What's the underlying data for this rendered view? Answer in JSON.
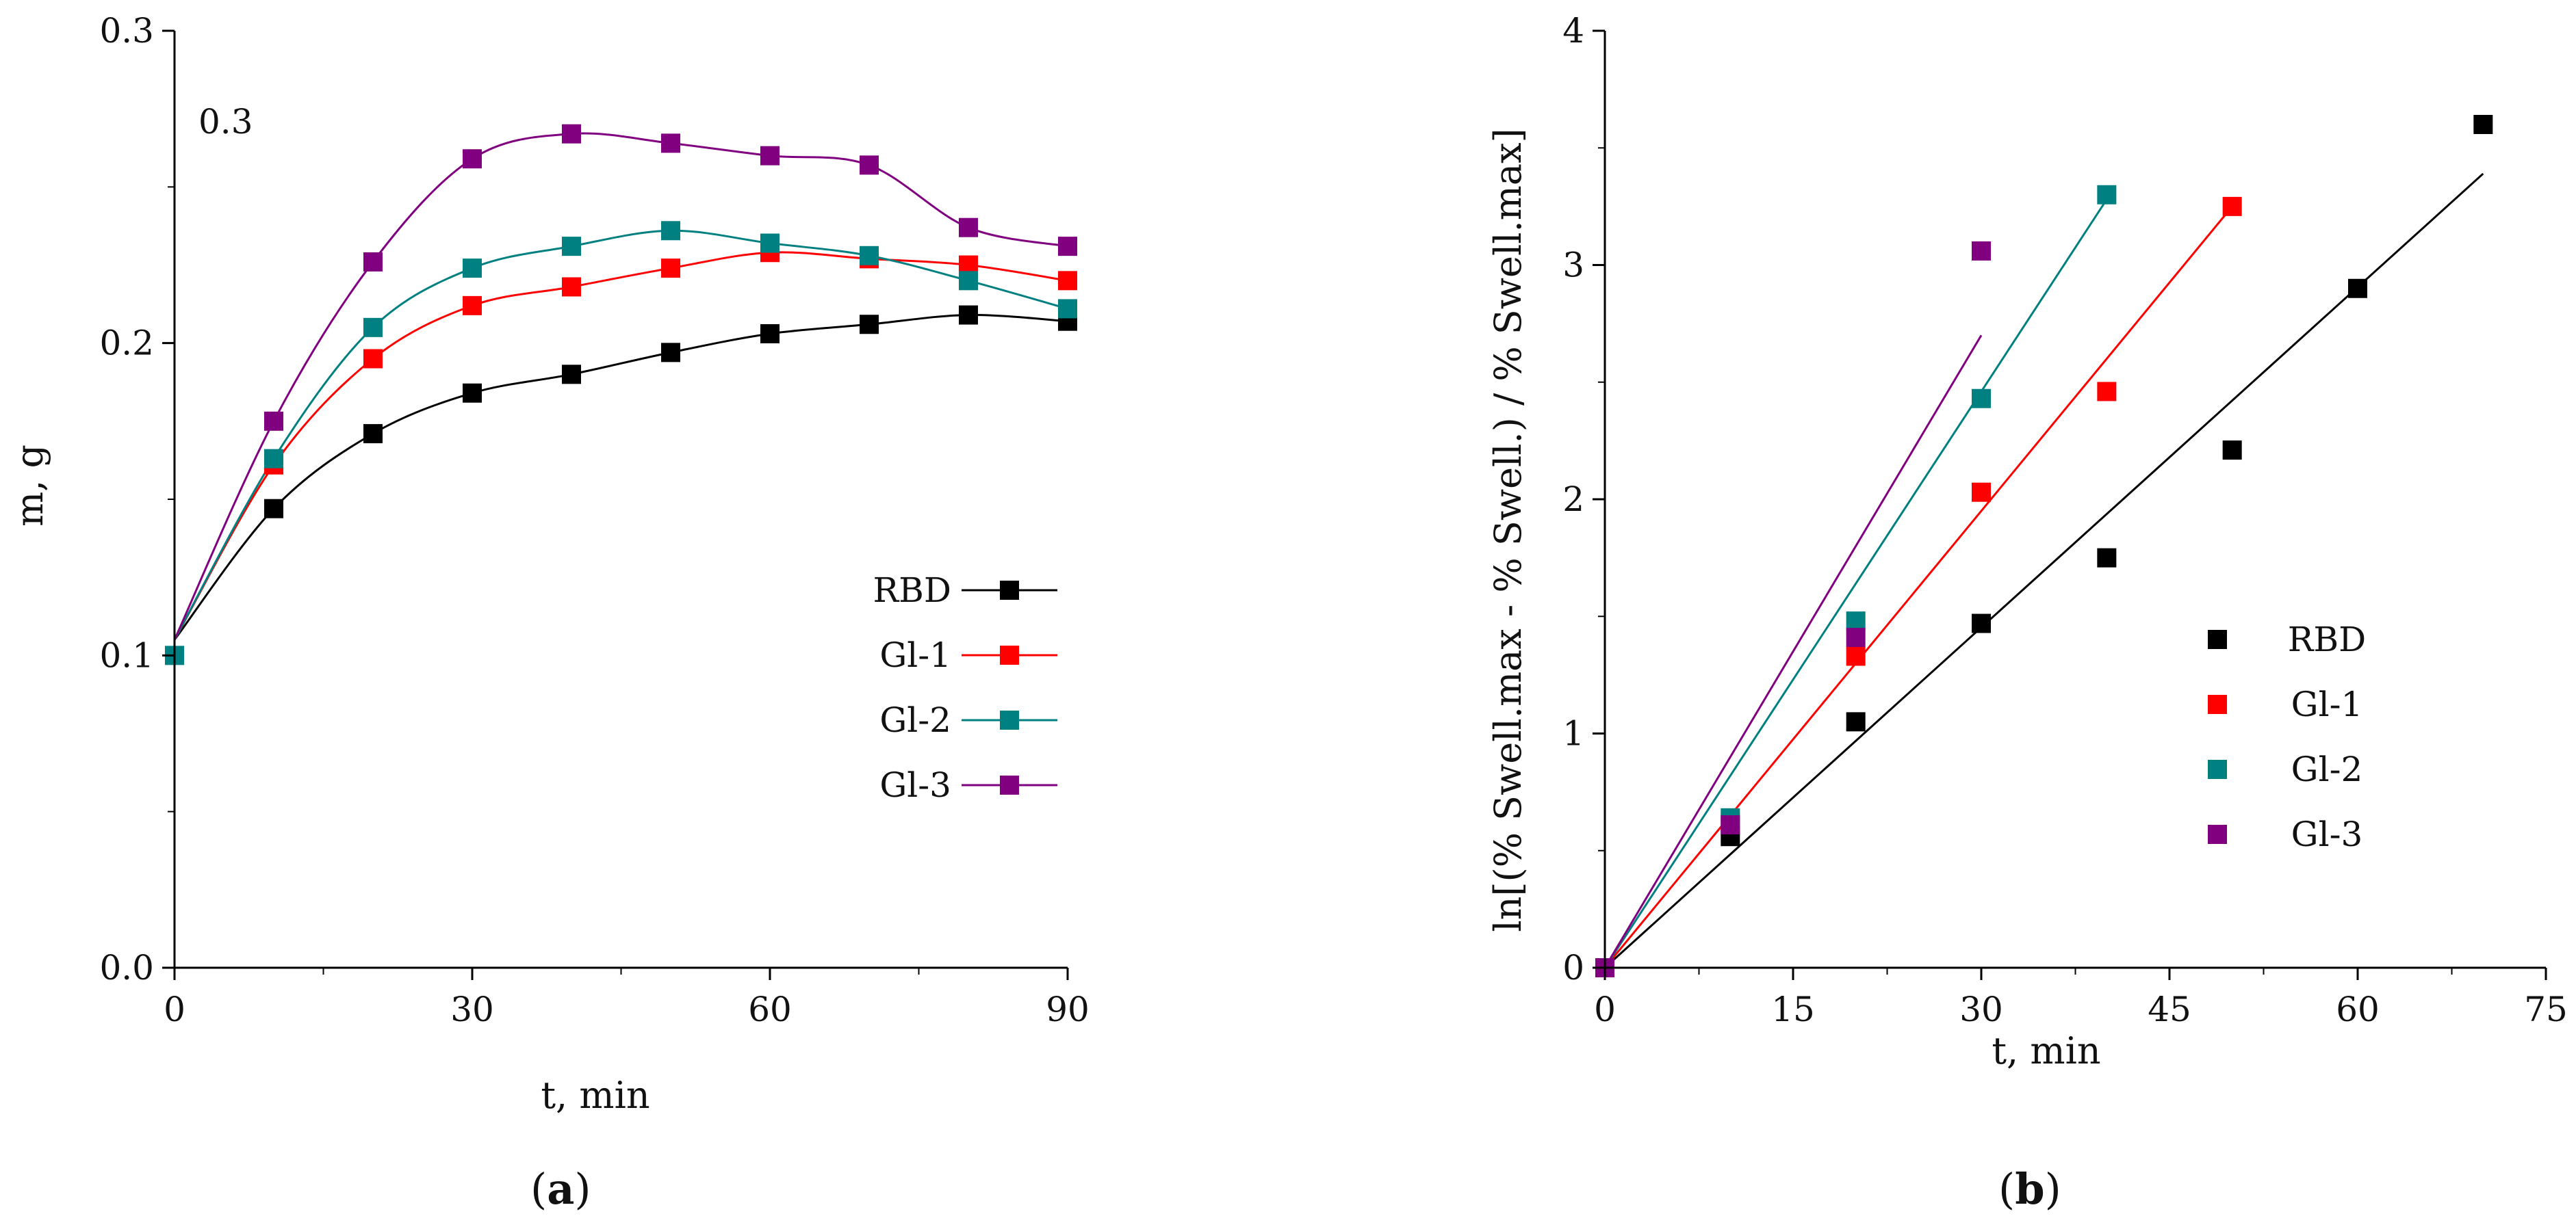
{
  "chart_data": [
    {
      "panel": "a",
      "type": "line",
      "panel_label_open": "(",
      "panel_label_letter": "a",
      "panel_label_close": ")",
      "annotation": "0.3",
      "xlabel": "t, min",
      "ylabel": "m, g",
      "xlim": [
        0,
        90
      ],
      "ylim": [
        0.0,
        0.3
      ],
      "xticks": [
        0,
        30,
        60,
        90
      ],
      "yticks": [
        0.0,
        0.1,
        0.2,
        0.3
      ],
      "xtick_labels": [
        "0",
        "30",
        "60",
        "90"
      ],
      "ytick_labels": [
        "0.0",
        "0.1",
        "0.2",
        "0.3"
      ],
      "legend_position": "right-middle",
      "series": [
        {
          "name": "RBD",
          "color": "#000000",
          "x": [
            10,
            20,
            30,
            40,
            50,
            60,
            70,
            80,
            90
          ],
          "y": [
            0.147,
            0.171,
            0.184,
            0.19,
            0.197,
            0.203,
            0.206,
            0.209,
            0.207
          ]
        },
        {
          "name": "Gl-1",
          "color": "#ff0000",
          "x": [
            10,
            20,
            30,
            40,
            50,
            60,
            70,
            80,
            90
          ],
          "y": [
            0.161,
            0.195,
            0.212,
            0.218,
            0.224,
            0.229,
            0.227,
            0.225,
            0.22
          ]
        },
        {
          "name": "Gl-2",
          "color": "#008080",
          "x": [
            0,
            10,
            20,
            30,
            40,
            50,
            60,
            70,
            80,
            90
          ],
          "y": [
            0.1,
            0.163,
            0.205,
            0.224,
            0.231,
            0.236,
            0.232,
            0.228,
            0.22,
            0.211
          ]
        },
        {
          "name": "Gl-3",
          "color": "#800080",
          "x": [
            10,
            20,
            30,
            40,
            50,
            60,
            70,
            80,
            90
          ],
          "y": [
            0.175,
            0.226,
            0.259,
            0.267,
            0.264,
            0.26,
            0.257,
            0.237,
            0.231
          ]
        }
      ]
    },
    {
      "panel": "b",
      "type": "scatter",
      "panel_label_open": "(",
      "panel_label_letter": "b",
      "panel_label_close": ")",
      "xlabel": "t, min",
      "ylabel": "ln[(% Swell.max - % Swell.) / % Swell.max]",
      "xlim": [
        0,
        75
      ],
      "ylim": [
        0,
        4
      ],
      "xticks": [
        0,
        15,
        30,
        45,
        60,
        75
      ],
      "yticks": [
        0,
        1,
        2,
        3,
        4
      ],
      "xtick_labels": [
        "0",
        "15",
        "30",
        "45",
        "60",
        "75"
      ],
      "ytick_labels": [
        "0",
        "1",
        "2",
        "3",
        "4"
      ],
      "legend_position": "right-middle",
      "series": [
        {
          "name": "RBD",
          "color": "#000000",
          "x": [
            0,
            10,
            20,
            30,
            40,
            50,
            60,
            70
          ],
          "y": [
            0,
            0.56,
            1.05,
            1.47,
            1.75,
            2.21,
            2.9,
            3.6
          ],
          "fit": [
            [
              0,
              0
            ],
            [
              70,
              3.39
            ]
          ]
        },
        {
          "name": "Gl-1",
          "color": "#ff0000",
          "x": [
            0,
            10,
            20,
            30,
            40,
            50
          ],
          "y": [
            0,
            0.62,
            1.33,
            2.03,
            2.46,
            3.25
          ],
          "fit": [
            [
              0,
              0
            ],
            [
              50,
              3.25
            ]
          ]
        },
        {
          "name": "Gl-2",
          "color": "#008080",
          "x": [
            0,
            10,
            20,
            30,
            40
          ],
          "y": [
            0,
            0.64,
            1.48,
            2.43,
            3.3
          ],
          "fit": [
            [
              0,
              0
            ],
            [
              40,
              3.28
            ]
          ]
        },
        {
          "name": "Gl-3",
          "color": "#800080",
          "x": [
            0,
            10,
            20,
            30
          ],
          "y": [
            0,
            0.61,
            1.41,
            3.06
          ],
          "fit": [
            [
              0,
              0
            ],
            [
              30,
              2.7
            ]
          ]
        }
      ]
    }
  ]
}
